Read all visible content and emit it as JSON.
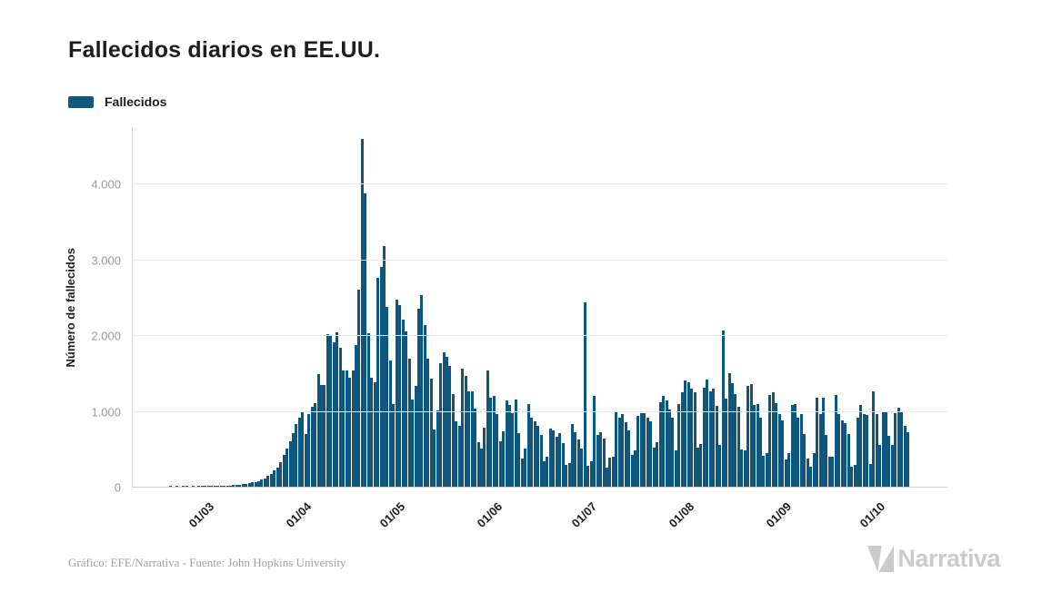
{
  "page": {
    "title": "Fallecidos diarios en EE.UU."
  },
  "legend": {
    "label": "Fallecidos",
    "swatch_color": "#15567d"
  },
  "footer": {
    "credit": "Gráfico: EFE/Narrativa - Fuente: John Hopkins University"
  },
  "logo": {
    "text": "Narrativa"
  },
  "chart_data": {
    "type": "bar",
    "title": "Fallecidos diarios en EE.UU.",
    "ylabel": "Número de fallecidos",
    "series_name": "Fallecidos",
    "bar_color": "#0f567e",
    "grid": "horizontal-only",
    "legend_position": "top-left",
    "start_date": "2020-02-05",
    "x_extent_days": 260,
    "ylim": [
      0,
      4755
    ],
    "y_ticks": [
      {
        "value": 0,
        "label": "0"
      },
      {
        "value": 1000,
        "label": "1.000"
      },
      {
        "value": 2000,
        "label": "2.000"
      },
      {
        "value": 3000,
        "label": "3.000"
      },
      {
        "value": 4000,
        "label": "4.000"
      }
    ],
    "x_ticks": [
      {
        "label": "01/03",
        "day_index": 25
      },
      {
        "label": "01/04",
        "day_index": 56
      },
      {
        "label": "01/05",
        "day_index": 86
      },
      {
        "label": "01/06",
        "day_index": 117
      },
      {
        "label": "01/07",
        "day_index": 147
      },
      {
        "label": "01/08",
        "day_index": 178
      },
      {
        "label": "01/09",
        "day_index": 209
      },
      {
        "label": "01/10",
        "day_index": 239
      }
    ],
    "values": [
      0,
      0,
      0,
      0,
      0,
      0,
      0,
      0,
      0,
      0,
      0,
      0,
      1,
      0,
      2,
      0,
      1,
      2,
      0,
      3,
      0,
      2,
      4,
      3,
      5,
      6,
      4,
      8,
      10,
      12,
      15,
      18,
      22,
      26,
      30,
      38,
      42,
      50,
      57,
      64,
      73,
      97,
      110,
      141,
      173,
      219,
      256,
      325,
      415,
      504,
      598,
      702,
      825,
      912,
      980,
      700,
      960,
      1049,
      1100,
      1480,
      1344,
      1342,
      2010,
      2000,
      1900,
      2035,
      1830,
      1528,
      1535,
      1433,
      1539,
      1867,
      2603,
      4591,
      3865,
      2028,
      1440,
      1380,
      2751,
      2900,
      3176,
      2371,
      1668,
      1087,
      2470,
      2390,
      2201,
      2043,
      1691,
      1154,
      1324,
      2350,
      2528,
      2129,
      1687,
      1422,
      750,
      1008,
      1630,
      1772,
      1715,
      1595,
      1218,
      865,
      808,
      1552,
      1461,
      1263,
      1260,
      1032,
      592,
      505,
      774,
      1535,
      1175,
      1193,
      960,
      605,
      730,
      1134,
      1083,
      974,
      1155,
      709,
      372,
      507,
      1093,
      906,
      868,
      802,
      683,
      330,
      391,
      770,
      740,
      658,
      712,
      577,
      284,
      316,
      824,
      722,
      619,
      500,
      2437,
      271,
      335,
      1199,
      679,
      720,
      630,
      254,
      380,
      397,
      993,
      908,
      963,
      849,
      737,
      422,
      476,
      935,
      974,
      969,
      908,
      860,
      516,
      584,
      1120,
      1195,
      1140,
      1019,
      910,
      481,
      1085,
      1244,
      1403,
      1382,
      1290,
      1244,
      515,
      565,
      1302,
      1413,
      1252,
      1290,
      1064,
      546,
      2060,
      1165,
      1499,
      1365,
      1220,
      1049,
      494,
      474,
      1324,
      1356,
      1074,
      1094,
      907,
      402,
      448,
      1205,
      1240,
      1106,
      958,
      875,
      363,
      444,
      1083,
      1089,
      910,
      954,
      690,
      374,
      268,
      448,
      1171,
      961,
      1170,
      679,
      397,
      391,
      1212,
      961,
      875,
      836,
      696,
      258,
      288,
      914,
      1078,
      960,
      952,
      302,
      1252,
      964,
      546,
      978,
      996,
      670,
      546,
      968,
      1045,
      994,
      806,
      719
    ]
  }
}
